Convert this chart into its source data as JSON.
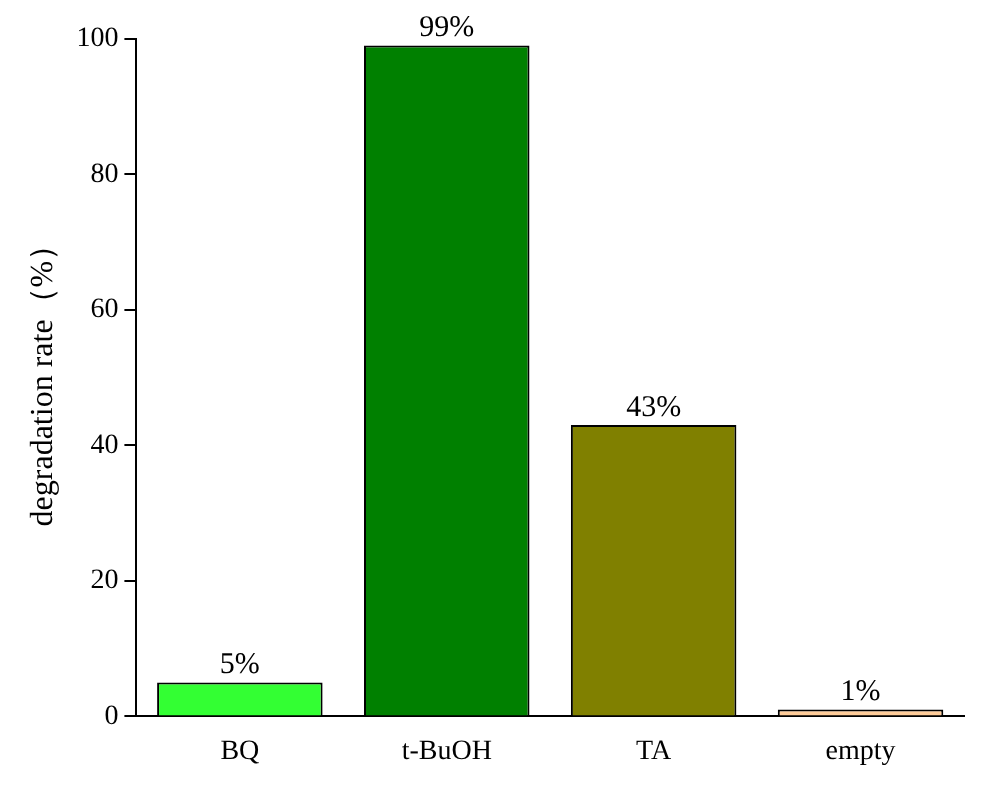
{
  "chart_data": {
    "type": "bar",
    "ylabel": "degradation rate（%）",
    "categories": [
      "BQ",
      "t-BuOH",
      "TA",
      "empty"
    ],
    "values": [
      5,
      99,
      43,
      1
    ],
    "colors": [
      "#33ff33",
      "#008000",
      "#808000",
      "#ffcc99"
    ],
    "value_labels": [
      "5%",
      "99%",
      "43%",
      "1%"
    ],
    "ylim": [
      0,
      100
    ],
    "yticks": [
      0,
      20,
      40,
      60,
      80,
      100
    ],
    "grid": false,
    "legend": false
  }
}
